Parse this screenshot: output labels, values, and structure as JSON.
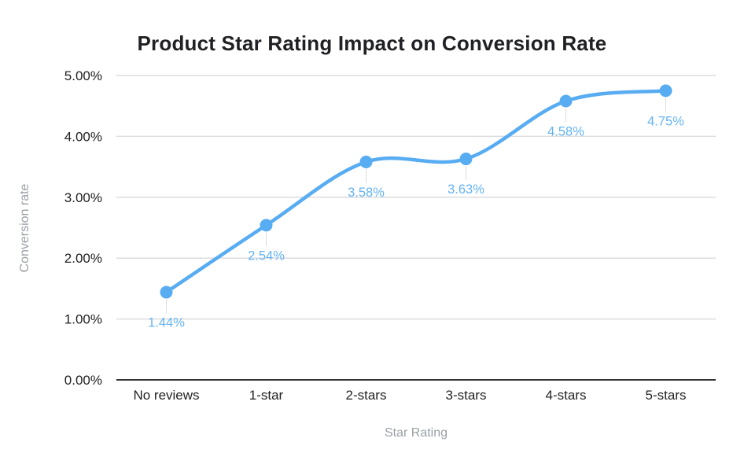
{
  "chart_data": {
    "type": "line",
    "curve": "smooth",
    "title": "Product Star Rating Impact on Conversion Rate",
    "xlabel": "Star Rating",
    "ylabel": "Conversion rate",
    "categories": [
      "No reviews",
      "1-star",
      "2-stars",
      "3-stars",
      "4-stars",
      "5-stars"
    ],
    "values": [
      1.44,
      2.54,
      3.58,
      3.63,
      4.58,
      4.75
    ],
    "point_labels": [
      "1.44%",
      "2.54%",
      "3.58%",
      "3.63%",
      "4.58%",
      "4.75%"
    ],
    "ylim": [
      0,
      5
    ],
    "ytick_step": 1,
    "ytick_labels": [
      "0.00%",
      "1.00%",
      "2.00%",
      "3.00%",
      "4.00%",
      "5.00%"
    ],
    "grid": true,
    "legend": "none",
    "colors": {
      "series": "#58ACF2",
      "point_label": "#64B3F4",
      "grid": "#DCDCDC",
      "axis_line": "#333333",
      "tick_text": "#222222",
      "axis_title_text": "#9AA0A6",
      "leader_line": "#DDDDDD",
      "background": "#FFFFFF"
    }
  }
}
